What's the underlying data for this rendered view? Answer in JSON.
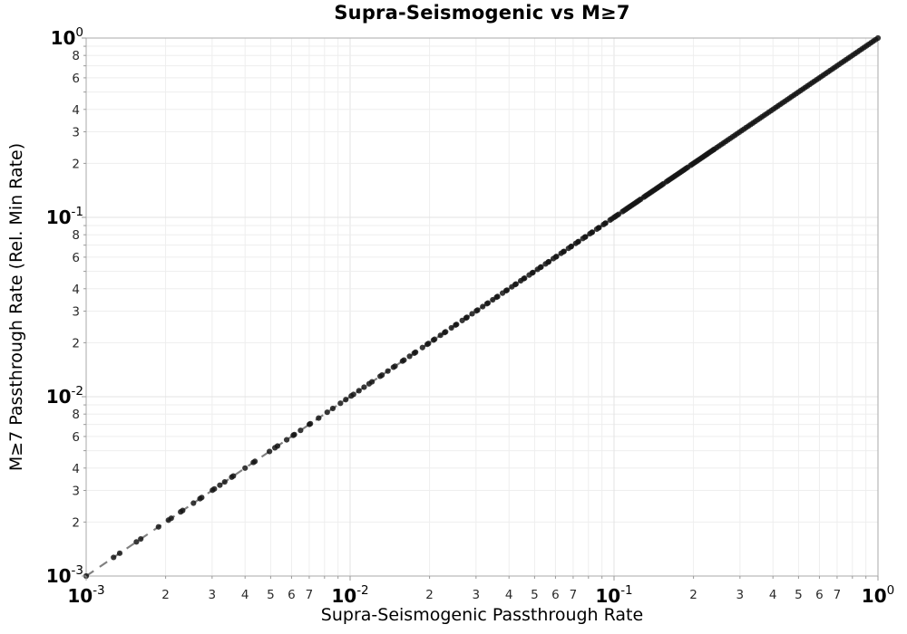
{
  "title": "Supra-Seismogenic vs M≥7",
  "axes": {
    "x_label": "Supra-Seismogenic Passthrough Rate",
    "y_label": "M≥7 Passthrough Rate (Rel. Min Rate)"
  },
  "colors": {
    "background": "#ffffff",
    "grid_minor": "#eeeeee",
    "grid_major": "#e3e3e3",
    "spine": "#aaaaaa",
    "tick": "#999999",
    "major_tick_text": "#000000",
    "minor_tick_text": "#2a2a2a",
    "reference_line": "#808080",
    "marker": "#151515"
  },
  "chart_data": {
    "type": "scatter",
    "title": "Supra-Seismogenic vs M≥7",
    "xlabel": "Supra-Seismogenic Passthrough Rate",
    "ylabel": "M≥7 Passthrough Rate (Rel. Min Rate)",
    "xscale": "log",
    "yscale": "log",
    "xlim": [
      0.001,
      1.0
    ],
    "ylim": [
      0.001,
      1.0
    ],
    "grid": true,
    "legend": false,
    "x_major_ticks": [
      {
        "base": "10",
        "exp": "-3",
        "value": 0.001
      },
      {
        "base": "10",
        "exp": "-2",
        "value": 0.01
      },
      {
        "base": "10",
        "exp": "-1",
        "value": 0.1
      },
      {
        "base": "10",
        "exp": "0",
        "value": 1.0
      }
    ],
    "y_major_ticks": [
      {
        "base": "10",
        "exp": "0",
        "value": 1.0
      },
      {
        "base": "10",
        "exp": "-1",
        "value": 0.1
      },
      {
        "base": "10",
        "exp": "-2",
        "value": 0.01
      },
      {
        "base": "10",
        "exp": "-3",
        "value": 0.001
      }
    ],
    "x_minor_tick_labels": [
      2,
      3,
      4,
      5,
      6,
      7
    ],
    "y_minor_tick_labels": [
      8,
      6,
      4,
      3,
      2
    ],
    "reference_line": {
      "name": "one-to-one",
      "equation": "y = x",
      "style": "dashed",
      "color": "#808080",
      "x_start": 0.001,
      "x_end": 1.0
    },
    "series": [
      {
        "name": "passthrough-rate-points",
        "marker": "circle",
        "marker_color": "#151515",
        "marker_opacity": 0.85,
        "relation": "y = x (all points lie on the 1:1 line)",
        "x": [
          0.001,
          0.00127,
          0.00134,
          0.00155,
          0.00161,
          0.00188,
          0.00205,
          0.0021,
          0.00228,
          0.00232,
          0.00255,
          0.0027,
          0.00274,
          0.00301,
          0.00306,
          0.00321,
          0.00335,
          0.00356,
          0.00361,
          0.004,
          0.0043,
          0.00436,
          0.00495,
          0.00519,
          0.00531,
          0.00575,
          0.00609,
          0.00615,
          0.00649,
          0.00701,
          0.00707,
          0.0076,
          0.00819,
          0.0086,
          0.00919,
          0.00963,
          0.0101,
          0.0103,
          0.0108,
          0.0113,
          0.0118,
          0.0121,
          0.013,
          0.0132,
          0.0139,
          0.0146,
          0.0148,
          0.0158,
          0.016,
          0.0168,
          0.0175,
          0.0177,
          0.0188,
          0.0196,
          0.0198,
          0.0207,
          0.0209,
          0.022,
          0.0228,
          0.023,
          0.0242,
          0.0251,
          0.0253,
          0.0266,
          0.0275,
          0.0277,
          0.029,
          0.0301,
          0.0304,
          0.0318,
          0.033,
          0.0333,
          0.0347,
          0.0359,
          0.0362,
          0.0378,
          0.039,
          0.0393,
          0.041,
          0.0422,
          0.0425,
          0.0443,
          0.0455,
          0.0458,
          0.0477,
          0.049,
          0.0493,
          0.0513,
          0.0526,
          0.0529,
          0.055,
          0.0563,
          0.0566,
          0.0589,
          0.0602,
          0.0605,
          0.063,
          0.0643,
          0.0646,
          0.0672,
          0.0686,
          0.0689,
          0.0716,
          0.073,
          0.0733,
          0.0762,
          0.0776,
          0.0779,
          0.081,
          0.0824,
          0.0827,
          0.086,
          0.0874,
          0.0877,
          0.0912,
          0.0926,
          0.0929,
          0.0966,
          0.098,
          0.1,
          0.1013,
          0.1027,
          0.1041,
          0.1076,
          0.109,
          0.1105,
          0.112,
          0.1135,
          0.115,
          0.1166,
          0.1181,
          0.1197,
          0.1213,
          0.1229,
          0.1246,
          0.1262,
          0.1297,
          0.1314,
          0.1332,
          0.135,
          0.1368,
          0.1386,
          0.1404,
          0.1423,
          0.1442,
          0.1461,
          0.1481,
          0.15,
          0.152,
          0.154,
          0.1581,
          0.1602,
          0.1623,
          0.1645,
          0.1667,
          0.1689,
          0.1711,
          0.1734,
          0.1757,
          0.178,
          0.1804,
          0.1828,
          0.1852,
          0.1877,
          0.1902,
          0.1952,
          0.1978,
          0.2004,
          0.2031,
          0.2058,
          0.2085,
          0.2113,
          0.2141,
          0.2169,
          0.2198,
          0.2227,
          0.2257,
          0.2287,
          0.2317,
          0.2348,
          0.2379,
          0.24,
          0.2448,
          0.2497,
          0.2547,
          0.2598,
          0.265,
          0.2703,
          0.2757,
          0.2812,
          0.2868,
          0.2925,
          0.2984,
          0.3044,
          0.3105,
          0.3167,
          0.323,
          0.3295,
          0.3361,
          0.3428,
          0.3497,
          0.3567,
          0.3638,
          0.3711,
          0.3785,
          0.3861,
          0.3938,
          0.4017,
          0.4097,
          0.4179,
          0.4263,
          0.4348,
          0.4435,
          0.4524,
          0.4614,
          0.4706,
          0.48,
          0.4896,
          0.4994,
          0.5094,
          0.5196,
          0.53,
          0.5406,
          0.5514,
          0.5624,
          0.5736,
          0.5851,
          0.5968,
          0.6087,
          0.6209,
          0.6333,
          0.646,
          0.6589,
          0.6721,
          0.6855,
          0.6992,
          0.7132,
          0.7275,
          0.7421,
          0.7569,
          0.772,
          0.7874,
          0.8031,
          0.8192,
          0.8356,
          0.8523,
          0.8693,
          0.8867,
          0.9044,
          0.9225,
          0.941,
          0.9598,
          0.979,
          1.0
        ]
      }
    ]
  }
}
